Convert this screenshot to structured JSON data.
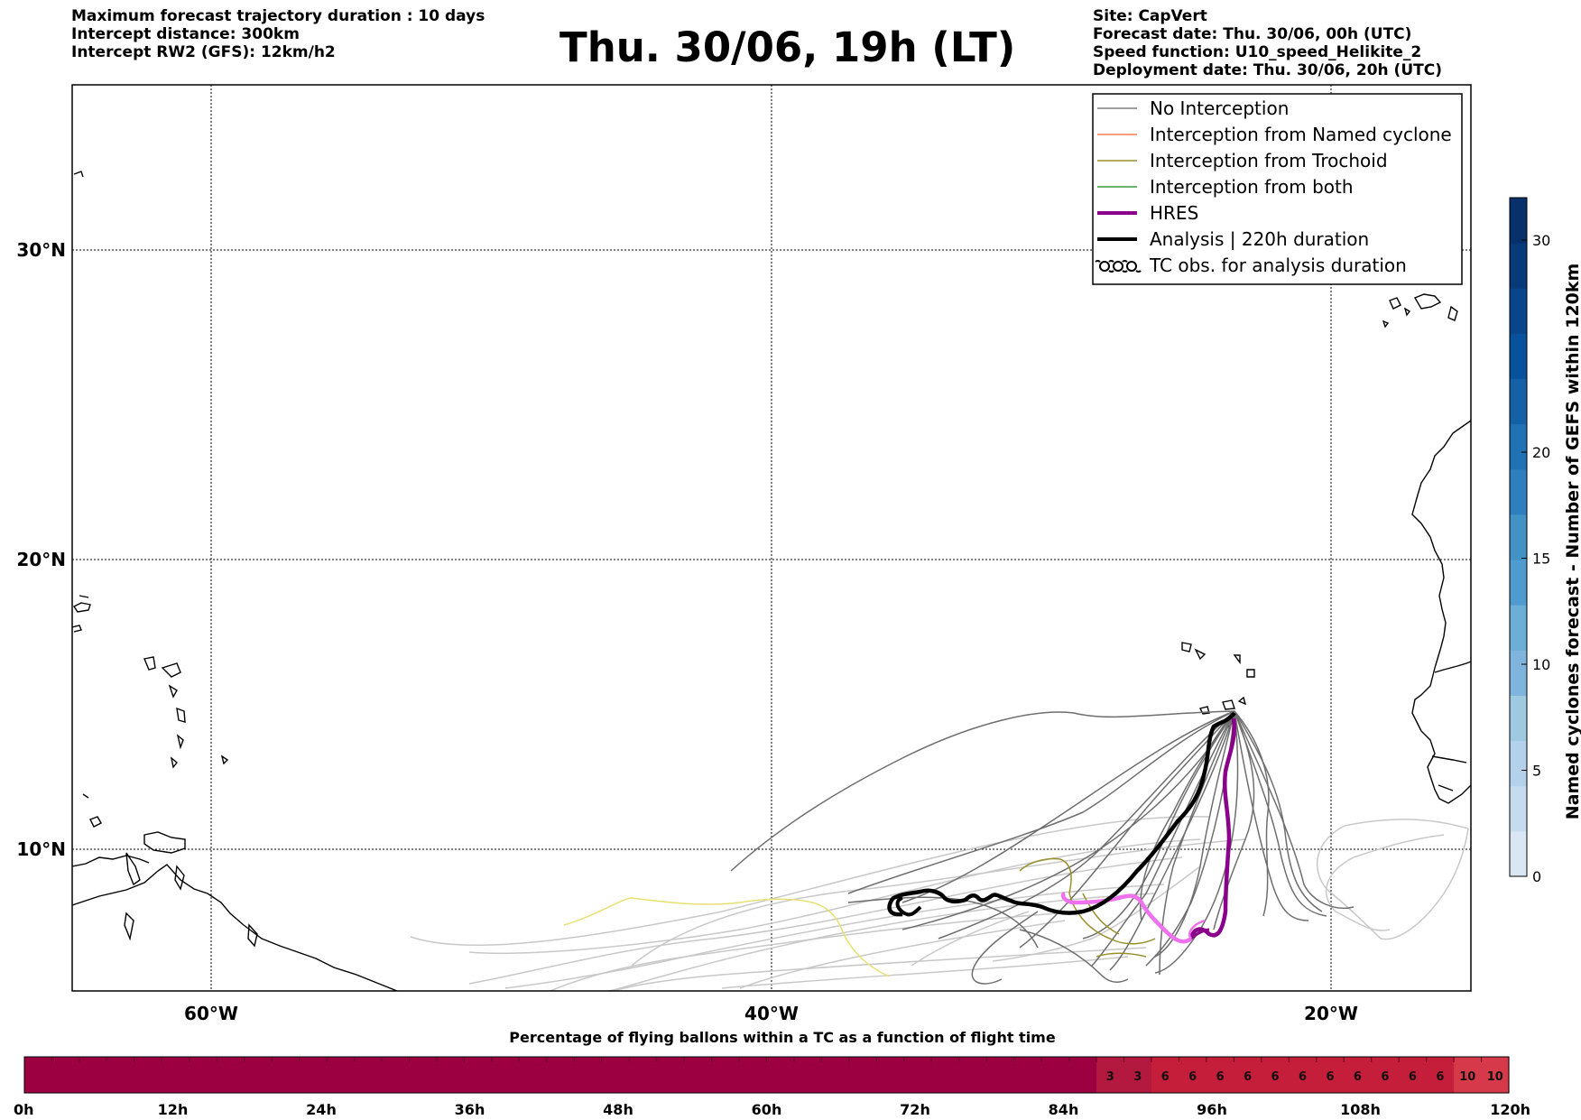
{
  "header": {
    "left": [
      "Maximum forecast trajectory duration : 10 days",
      "Intercept distance: 300km",
      "Intercept RW2 (GFS):  12km/h2"
    ],
    "title": "Thu. 30/06, 19h (LT)",
    "right": [
      "Site: CapVert",
      "Forecast date: Thu. 30/06, 00h (UTC)",
      "Speed function: U10_speed_Helikite_2",
      "Deployment date: Thu. 30/06, 20h (UTC)"
    ]
  },
  "map": {
    "lat_labels": [
      "30°N",
      "20°N",
      "10°N"
    ],
    "lon_labels": [
      "60°W",
      "40°W",
      "20°W"
    ]
  },
  "legend": {
    "items": [
      {
        "label": "No Interception",
        "color": "#808080",
        "kind": "line"
      },
      {
        "label": "Interception from Named cyclone",
        "color": "#ff7f50",
        "kind": "line"
      },
      {
        "label": "Interception from Trochoid",
        "color": "#9a8f2a",
        "kind": "line"
      },
      {
        "label": "Interception from both",
        "color": "#3a9a3a",
        "kind": "line"
      },
      {
        "label": "HRES",
        "color": "#8b008b",
        "kind": "thick"
      },
      {
        "label": "Analysis | 220h duration",
        "color": "#000000",
        "kind": "thick"
      },
      {
        "label": "TC obs. for analysis duration",
        "color": "#000000",
        "kind": "tc-icon"
      }
    ]
  },
  "colorbar": {
    "label": "Named cyclones forecast - Number of GEFS within 120km",
    "ticks": [
      "0",
      "5",
      "10",
      "15",
      "20",
      "30"
    ],
    "colors": [
      "#dae6f4",
      "#c7dbef",
      "#b3d1ea",
      "#9ecae1",
      "#7fb4dc",
      "#6baed6",
      "#4f9bcf",
      "#4292c6",
      "#2f7fbf",
      "#2171b5",
      "#1561a8",
      "#08519c",
      "#08468b",
      "#083a7a",
      "#08306b"
    ]
  },
  "bottom_bar": {
    "title": "Percentage of flying ballons within a TC as a function of flight time",
    "tick_labels": [
      "0h",
      "12h",
      "24h",
      "36h",
      "48h",
      "60h",
      "72h",
      "84h",
      "96h",
      "108h",
      "120h"
    ],
    "cell_values": [
      "",
      "",
      "",
      "",
      "",
      "",
      "",
      "",
      "",
      "",
      "",
      "",
      "",
      "",
      "",
      "",
      "",
      "",
      "",
      "",
      "",
      "",
      "",
      "",
      "",
      "",
      "",
      "",
      "",
      "",
      "",
      "",
      "",
      "",
      "",
      "",
      "",
      "",
      "",
      "3",
      "3",
      "6",
      "6",
      "6",
      "6",
      "6",
      "6",
      "6",
      "6",
      "6",
      "6",
      "6",
      "10",
      "10"
    ],
    "colors": {
      "zero": "#9d0040",
      "low": "#b3193f",
      "mid": "#c41e3a",
      "high": "#d6394a"
    }
  }
}
